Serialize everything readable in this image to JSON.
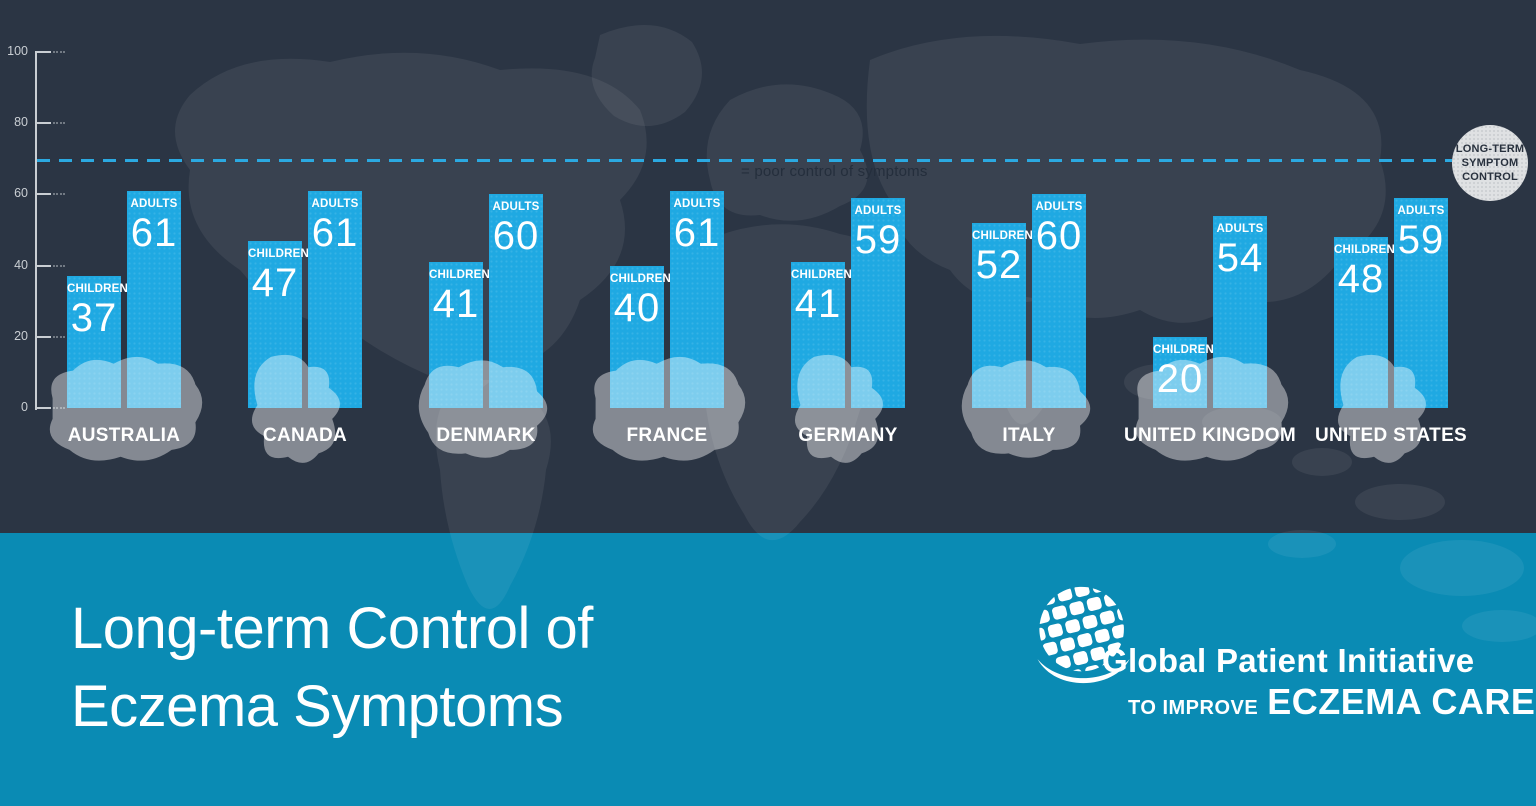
{
  "title": {
    "line1": "Long-term Control of",
    "line2": "Eczema Symptoms"
  },
  "brand": {
    "name_line": "Global Patient Initiative",
    "tagline_small": "TO IMPROVE",
    "tagline_large": "ECZEMA CARE"
  },
  "threshold": {
    "value": 70,
    "badge_lines": [
      "LONG-TERM",
      "SYMPTOM",
      "CONTROL"
    ],
    "annotation": "= poor control of symptoms"
  },
  "colors": {
    "background_navy": "#2B3544",
    "bar_blue": "#1FA9E2",
    "footer_teal": "#0A8BB4",
    "threshold_dash": "#2BA9E1",
    "badge_bg": "#DFE1E3",
    "badge_text": "#28313E",
    "axis": "#C9CED3",
    "country_silhouette": "rgba(255,255,255,0.42)",
    "map_overlay": "rgba(255,255,255,0.065)"
  },
  "chart_data": {
    "type": "bar",
    "title": "Long-term Control of Eczema Symptoms",
    "categories": [
      "AUSTRALIA",
      "CANADA",
      "DENMARK",
      "FRANCE",
      "GERMANY",
      "ITALY",
      "UNITED KINGDOM",
      "UNITED STATES"
    ],
    "series": [
      {
        "name": "CHILDREN",
        "values": [
          37,
          47,
          41,
          40,
          41,
          52,
          20,
          48
        ]
      },
      {
        "name": "ADULTS",
        "values": [
          61,
          61,
          60,
          61,
          59,
          60,
          54,
          59
        ]
      }
    ],
    "ylim": [
      0,
      100
    ],
    "y_ticks": [
      0,
      20,
      40,
      60,
      80,
      100
    ],
    "threshold_line": {
      "value": 70,
      "label": "LONG-TERM SYMPTOM CONTROL"
    },
    "legend_position": "on-bar",
    "grid": false
  }
}
